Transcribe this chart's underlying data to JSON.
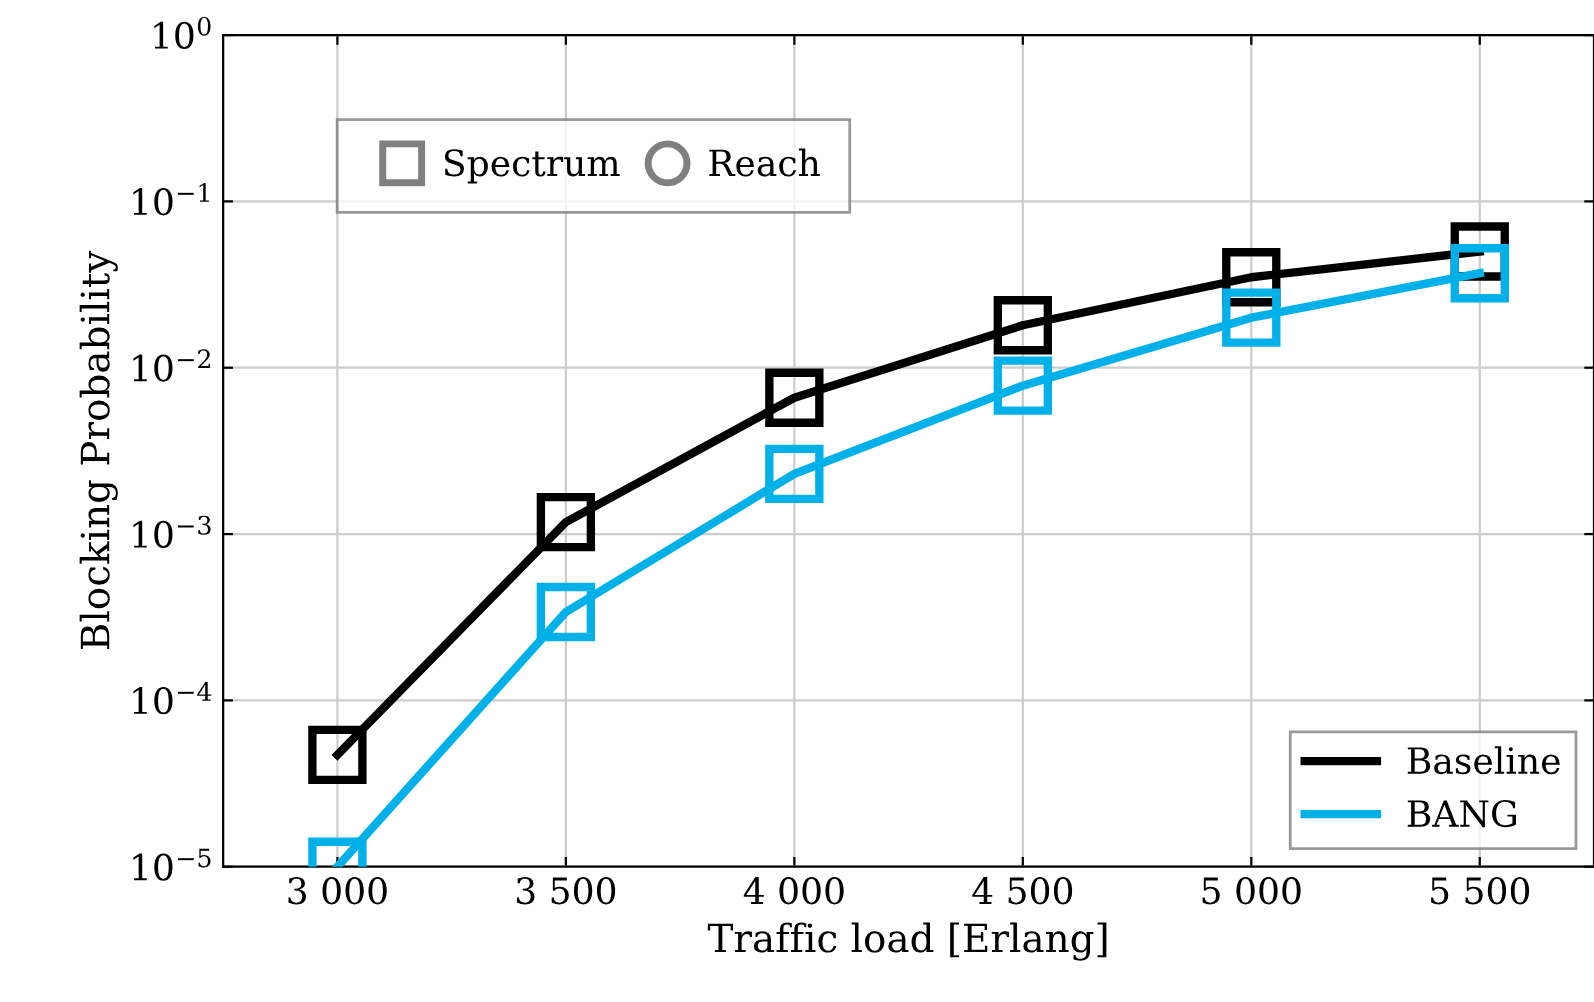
{
  "chart_data": {
    "type": "line",
    "xlabel": "Traffic load [Erlang]",
    "ylabel": "Blocking Probability",
    "x": [
      3000,
      3500,
      4000,
      4500,
      5000,
      5500
    ],
    "series": [
      {
        "name": "Baseline",
        "color": "#000000",
        "values": [
          4.7e-05,
          0.00118,
          0.0066,
          0.018,
          0.035,
          0.05
        ]
      },
      {
        "name": "BANG",
        "color": "#00b0e8",
        "values": [
          1e-05,
          0.00034,
          0.0023,
          0.0078,
          0.02,
          0.037
        ]
      },
      {
        "name": "Spectrum",
        "type": "scatter",
        "color": "#808080",
        "marker": "square",
        "values": [
          null,
          null,
          null,
          null,
          null,
          null
        ]
      },
      {
        "name": "Reach",
        "type": "scatter",
        "color": "#808080",
        "marker": "circle",
        "values": [
          null,
          null,
          null,
          null,
          null,
          null
        ]
      }
    ],
    "log": "y",
    "marker": "square",
    "grid": true,
    "legend": "bottom right",
    "xlim": [
      2750,
      5750
    ],
    "xticks": [
      {
        "value": 3000,
        "label": "3 000"
      },
      {
        "value": 3500,
        "label": "3 500"
      },
      {
        "value": 4000,
        "label": "4 000"
      },
      {
        "value": 4500,
        "label": "4 500"
      },
      {
        "value": 5000,
        "label": "5 000"
      },
      {
        "value": 5500,
        "label": "5 500"
      }
    ],
    "ylim": [
      1e-05,
      1
    ],
    "yticks": [
      {
        "value": 1e-05,
        "label": "10$^{−5}$"
      },
      {
        "value": 0.0001,
        "label": "10$^{−4}$"
      },
      {
        "value": 0.001,
        "label": "10$^{−3}$"
      },
      {
        "value": 0.01,
        "label": "10$^{−2}$"
      },
      {
        "value": 0.1,
        "label": "10$^{−1}$"
      },
      {
        "value": 1,
        "label": "10$^{0}$"
      }
    ]
  }
}
